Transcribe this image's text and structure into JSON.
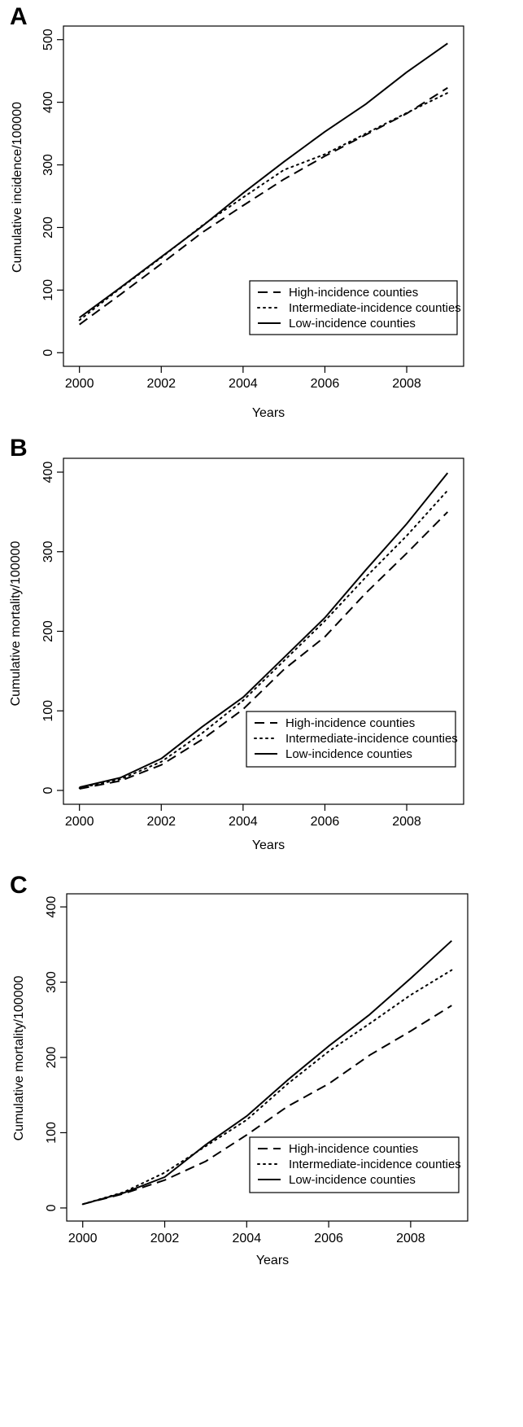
{
  "chart_data": [
    {
      "panel": "A",
      "type": "line",
      "xlabel": "Years",
      "ylabel": "Cumulative incidence/100000",
      "xlim": [
        2000,
        2009
      ],
      "ylim": [
        0,
        500
      ],
      "xticks": [
        2000,
        2002,
        2004,
        2006,
        2008
      ],
      "yticks": [
        0,
        100,
        200,
        300,
        400,
        500
      ],
      "legend_position": "bottom-right",
      "x": [
        2000,
        2001,
        2002,
        2003,
        2004,
        2005,
        2006,
        2007,
        2008,
        2009
      ],
      "series": [
        {
          "name": "High-incidence counties",
          "style": "dashed",
          "values": [
            45,
            93,
            142,
            192,
            235,
            277,
            314,
            348,
            382,
            423
          ]
        },
        {
          "name": "Intermediate-incidence counties",
          "style": "dotted",
          "values": [
            52,
            103,
            152,
            203,
            248,
            292,
            317,
            350,
            383,
            415
          ]
        },
        {
          "name": "Low-incidence counties",
          "style": "solid",
          "values": [
            56,
            104,
            153,
            202,
            255,
            305,
            353,
            397,
            448,
            494
          ]
        }
      ]
    },
    {
      "panel": "B",
      "type": "line",
      "xlabel": "Years",
      "ylabel": "Cumulative mortality/100000",
      "xlim": [
        2000,
        2009
      ],
      "ylim": [
        0,
        400
      ],
      "xticks": [
        2000,
        2002,
        2004,
        2006,
        2008
      ],
      "yticks": [
        0,
        100,
        200,
        300,
        400
      ],
      "legend_position": "bottom-right",
      "x": [
        2000,
        2001,
        2002,
        2003,
        2004,
        2005,
        2006,
        2007,
        2008,
        2009
      ],
      "series": [
        {
          "name": "High-incidence counties",
          "style": "dashed",
          "values": [
            2,
            12,
            32,
            64,
            102,
            152,
            193,
            248,
            298,
            350
          ]
        },
        {
          "name": "Intermediate-incidence counties",
          "style": "dotted",
          "values": [
            3,
            14,
            36,
            72,
            113,
            163,
            213,
            268,
            320,
            377
          ]
        },
        {
          "name": "Low-incidence counties",
          "style": "solid",
          "values": [
            4,
            16,
            40,
            80,
            117,
            167,
            217,
            277,
            335,
            399
          ]
        }
      ]
    },
    {
      "panel": "C",
      "type": "line",
      "xlabel": "Years",
      "ylabel": "Cumulative mortality/100000",
      "xlim": [
        2000,
        2009
      ],
      "ylim": [
        0,
        400
      ],
      "xticks": [
        2000,
        2002,
        2004,
        2006,
        2008
      ],
      "yticks": [
        0,
        100,
        200,
        300,
        400
      ],
      "legend_position": "bottom-right",
      "x": [
        2000,
        2001,
        2002,
        2003,
        2004,
        2005,
        2006,
        2007,
        2008,
        2009
      ],
      "series": [
        {
          "name": "High-incidence counties",
          "style": "dashed",
          "values": [
            5,
            19,
            37,
            62,
            97,
            135,
            165,
            203,
            235,
            269
          ]
        },
        {
          "name": "Intermediate-incidence counties",
          "style": "dotted",
          "values": [
            5,
            21,
            47,
            82,
            117,
            165,
            208,
            245,
            283,
            316
          ]
        },
        {
          "name": "Low-incidence counties",
          "style": "solid",
          "values": [
            5,
            20,
            41,
            84,
            122,
            170,
            215,
            257,
            305,
            355
          ]
        }
      ]
    }
  ]
}
